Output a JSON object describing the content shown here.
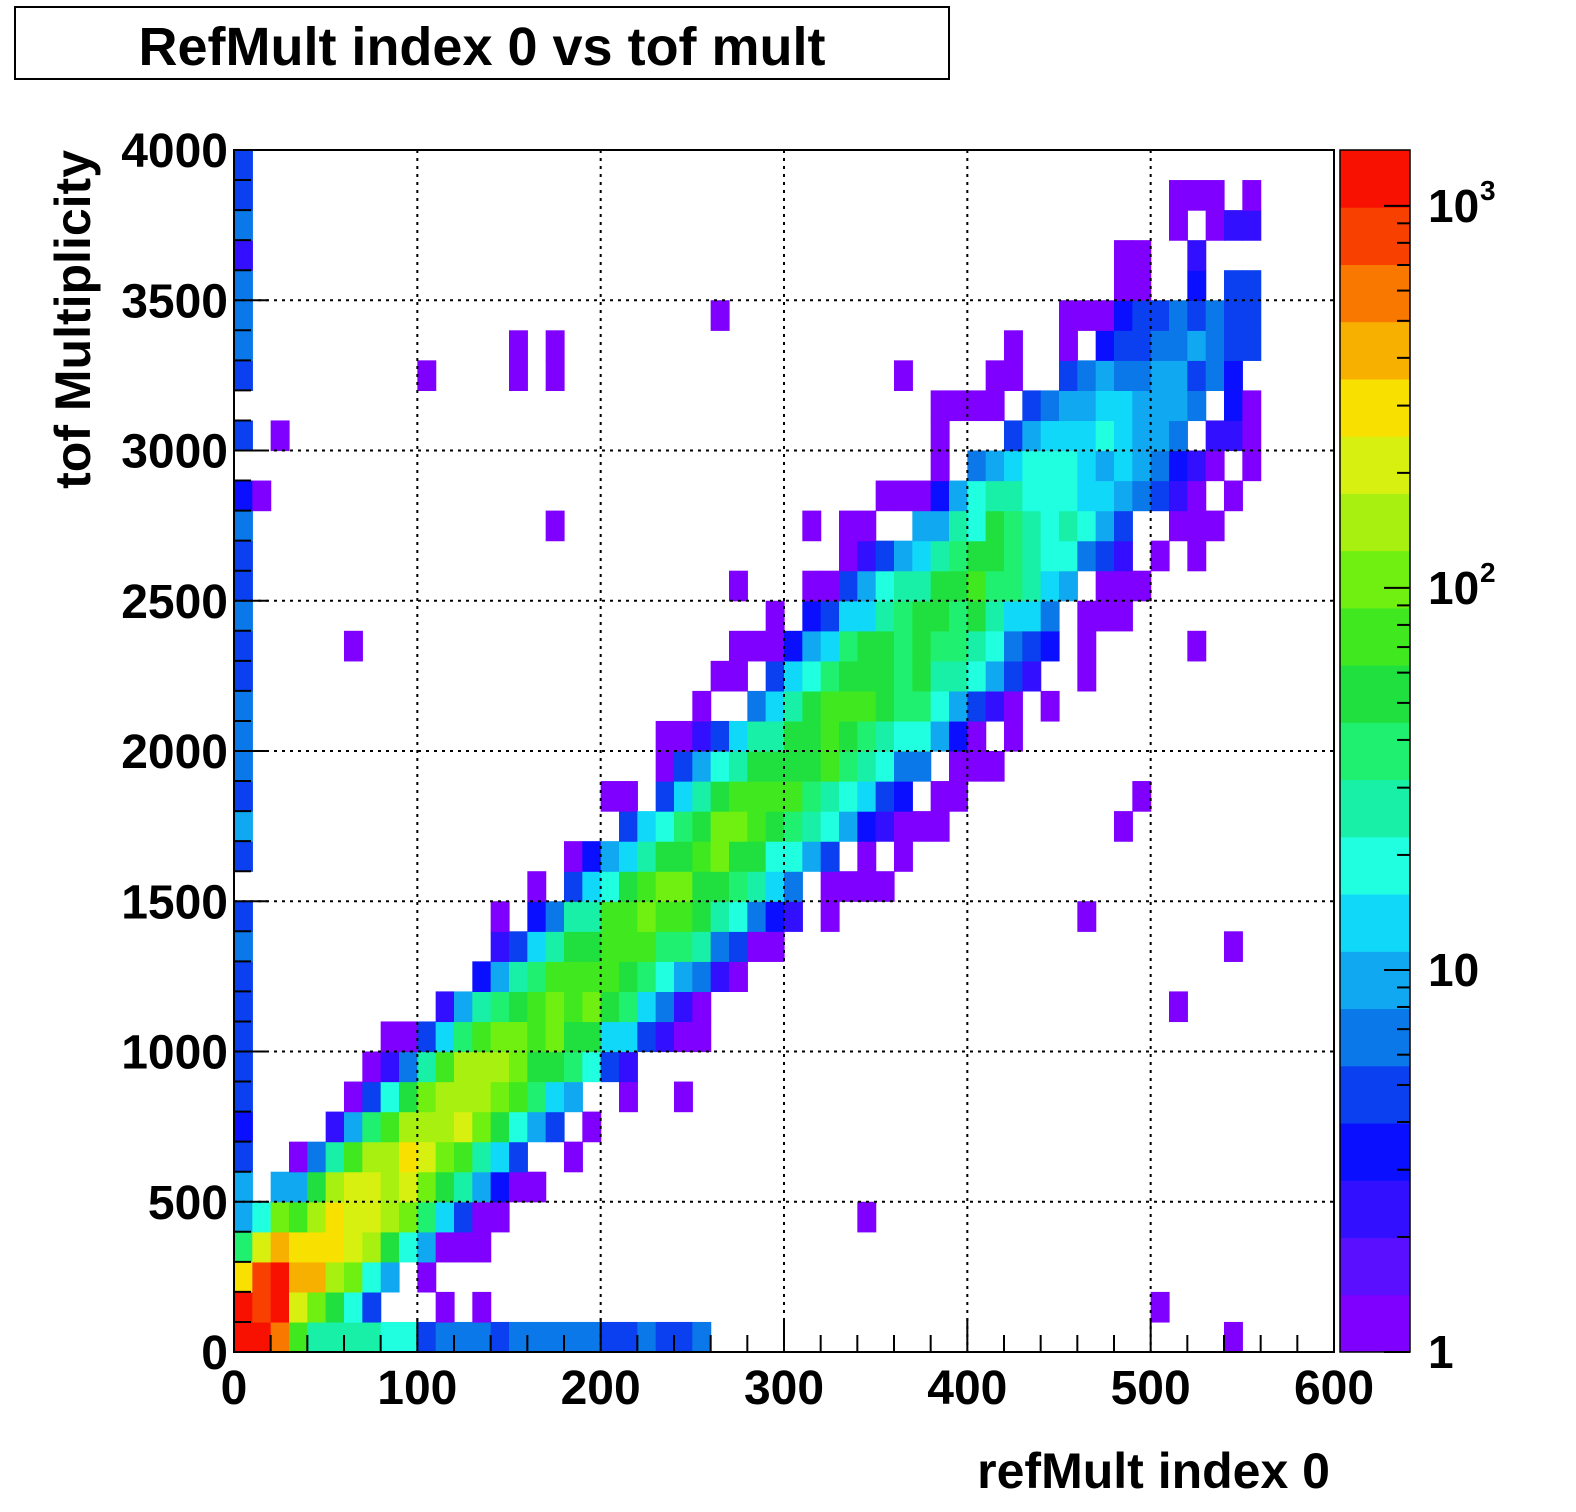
{
  "title": "RefMult index 0 vs tof mult",
  "chart_data": {
    "type": "heatmap",
    "title": "RefMult index 0 vs tof mult",
    "xlabel": "refMult index 0",
    "ylabel": "tof Multiplicity",
    "xlim": [
      0,
      600
    ],
    "ylim": [
      0,
      4000
    ],
    "x_ticks": [
      "0",
      "100",
      "200",
      "300",
      "400",
      "500",
      "600"
    ],
    "y_ticks": [
      "0",
      "500",
      "1000",
      "1500",
      "2000",
      "2500",
      "3000",
      "3500",
      "4000"
    ],
    "grid": true,
    "z_scale": "log",
    "zlim": [
      1,
      1400
    ],
    "z_tick_labels": [
      {
        "value": 1,
        "base": "1",
        "exp": ""
      },
      {
        "value": 10,
        "base": "10",
        "exp": ""
      },
      {
        "value": 100,
        "base": "10",
        "exp": "2"
      },
      {
        "value": 1000,
        "base": "10",
        "exp": "3"
      }
    ],
    "palette": [
      "#7f00ff",
      "#5a0fff",
      "#3210ff",
      "#0a10ff",
      "#0a40f0",
      "#0a78e8",
      "#10a8f0",
      "#10d8f8",
      "#20ffe0",
      "#18f0a8",
      "#20f070",
      "#20e040",
      "#40e820",
      "#70f010",
      "#a8f010",
      "#d8f010",
      "#f8e000",
      "#f8b000",
      "#f87800",
      "#f84000",
      "#f81000"
    ],
    "bin_size": {
      "x": 10,
      "y": 100
    },
    "description": "Bins as [x_center, y_center, count]",
    "bins": []
  }
}
